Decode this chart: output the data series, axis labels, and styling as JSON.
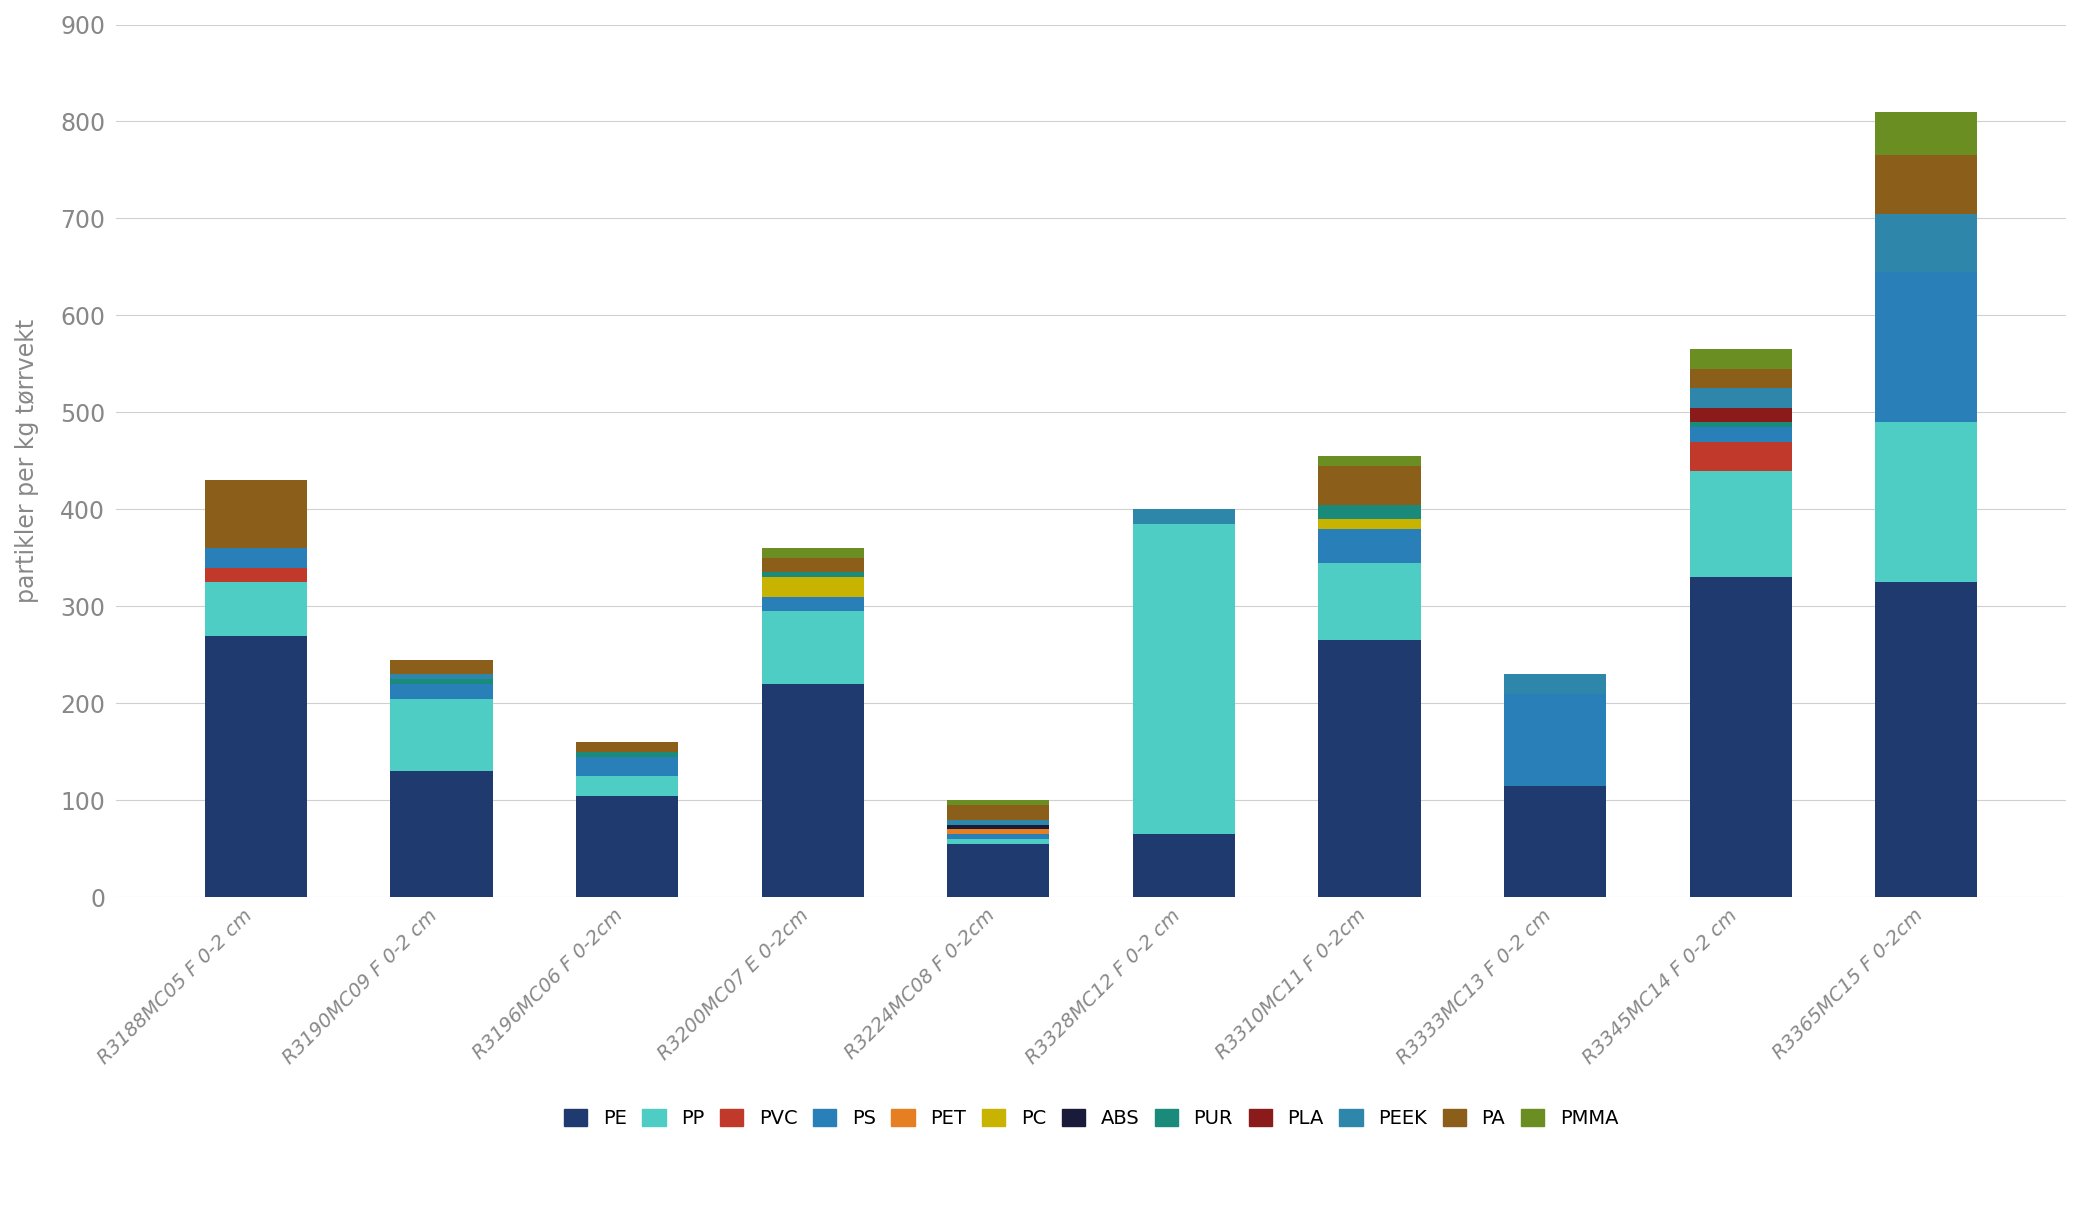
{
  "categories": [
    "R3188MC05 F 0-2 cm",
    "R3190MC09 F 0-2 cm",
    "R3196MC06 F 0-2cm",
    "R3200MC07 E 0-2cm",
    "R3224MC08 F 0-2cm",
    "R3328MC12 F 0-2 cm",
    "R3310MC11 F 0-2cm",
    "R3333MC13 F 0-2 cm",
    "R3345MC14 F 0-2 cm",
    "R3365MC15 F 0-2cm"
  ],
  "series": {
    "PE": [
      270,
      130,
      105,
      220,
      55,
      65,
      265,
      115,
      330,
      325
    ],
    "PP": [
      55,
      75,
      20,
      75,
      5,
      320,
      80,
      0,
      110,
      165
    ],
    "PVC": [
      15,
      0,
      0,
      0,
      0,
      0,
      0,
      0,
      30,
      0
    ],
    "PS": [
      20,
      15,
      20,
      15,
      5,
      0,
      35,
      95,
      15,
      155
    ],
    "PET": [
      0,
      0,
      0,
      0,
      5,
      0,
      0,
      0,
      0,
      0
    ],
    "PC": [
      0,
      0,
      0,
      20,
      0,
      0,
      10,
      0,
      0,
      0
    ],
    "ABS": [
      0,
      0,
      0,
      0,
      5,
      0,
      0,
      0,
      0,
      0
    ],
    "PUR": [
      0,
      5,
      5,
      5,
      0,
      0,
      15,
      0,
      5,
      0
    ],
    "PLA": [
      0,
      0,
      0,
      0,
      0,
      0,
      0,
      0,
      15,
      0
    ],
    "PEEK": [
      0,
      5,
      0,
      0,
      5,
      15,
      0,
      20,
      20,
      60
    ],
    "PA": [
      70,
      15,
      10,
      15,
      15,
      0,
      40,
      0,
      20,
      60
    ],
    "PMMA": [
      0,
      0,
      0,
      10,
      5,
      0,
      10,
      0,
      20,
      45
    ]
  },
  "colors": {
    "PE": "#1f3a6e",
    "PP": "#4ecdc4",
    "PVC": "#c0392b",
    "PS": "#2980b9",
    "PET": "#e67e22",
    "PC": "#c8b400",
    "ABS": "#1a1a3a",
    "PUR": "#1a8a7a",
    "PLA": "#8b1a1a",
    "PEEK": "#2e86ab",
    "PA": "#8b5e1a",
    "PMMA": "#6b8e23"
  },
  "ylabel": "partikler per kg tørrvekt",
  "ylim": [
    0,
    900
  ],
  "yticks": [
    0,
    100,
    200,
    300,
    400,
    500,
    600,
    700,
    800,
    900
  ],
  "background_color": "#ffffff",
  "grid_color": "#d0d0d0",
  "bar_width": 0.55
}
